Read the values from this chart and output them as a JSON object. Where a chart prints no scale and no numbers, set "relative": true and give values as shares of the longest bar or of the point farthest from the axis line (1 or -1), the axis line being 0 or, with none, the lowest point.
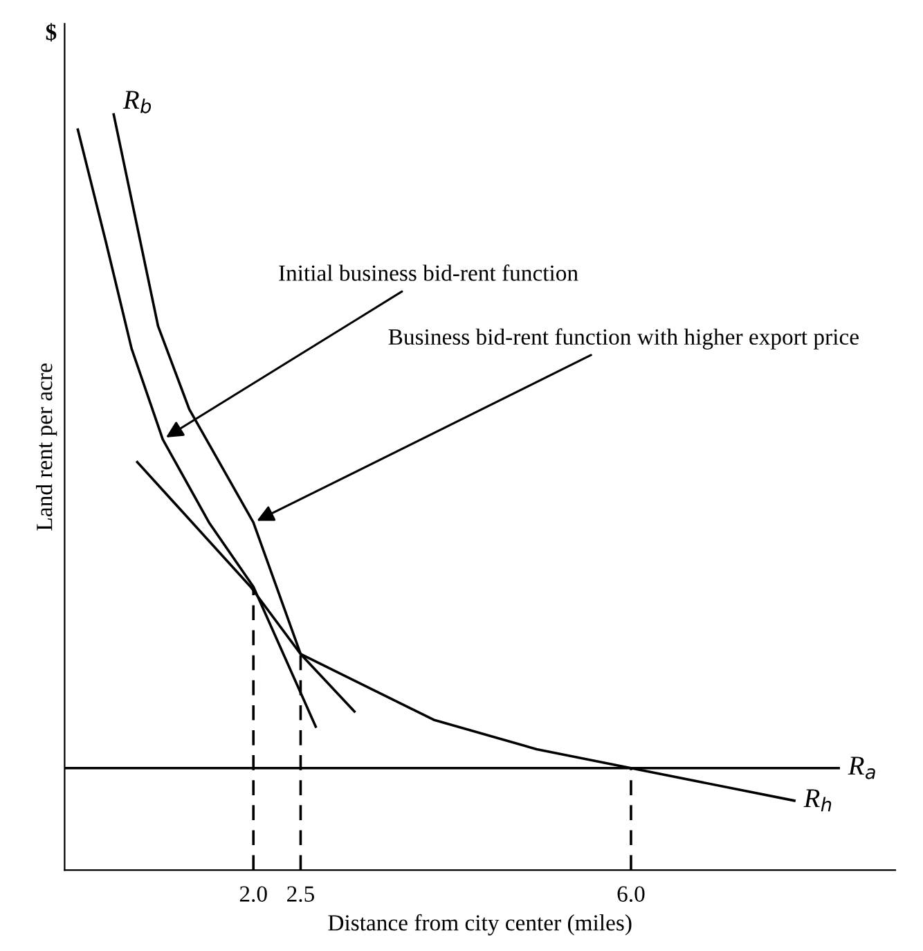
{
  "chart_data": {
    "type": "line",
    "relative": true,
    "xlabel": "Distance from city center (miles)",
    "ylabel": "Land rent per acre",
    "xlim": [
      0,
      8.8
    ],
    "xticks": [
      {
        "value": 2,
        "label": "2.0"
      },
      {
        "value": 2.5,
        "label": "2.5"
      },
      {
        "value": 6,
        "label": "6.0"
      }
    ],
    "grid": false,
    "legend": false,
    "marker": "none",
    "series": [
      {
        "name": "R$_{b}$",
        "color": "#000000",
        "x": [
          0.52,
          0.99,
          1.32,
          2.0,
          2.5,
          3.07
        ],
        "values": [
          1.0,
          0.72,
          0.61,
          0.46,
          0.286,
          0.21
        ]
      },
      {
        "color": "#000000",
        "x": [
          0.14,
          0.44,
          0.71,
          1.04,
          1.53,
          2.0,
          2.66
        ],
        "values": [
          0.98,
          0.83,
          0.69,
          0.57,
          0.46,
          0.375,
          0.19
        ]
      },
      {
        "name": "R$_{h}$",
        "color": "#000000",
        "x": [
          0.77,
          1.97,
          2.5,
          3.91,
          5.0,
          6.0,
          7.73
        ],
        "values": [
          0.54,
          0.375,
          0.286,
          0.199,
          0.16,
          0.135,
          0.092
        ]
      },
      {
        "name": "R$_{a}$",
        "color": "#000000",
        "x": [
          0,
          8.2
        ],
        "values": [
          0.135,
          0.135
        ]
      },
      {
        "color": "#000000",
        "line_style": "dashed",
        "x": [
          2.0,
          2.0
        ],
        "values": [
          0,
          0.375
        ]
      },
      {
        "color": "#000000",
        "line_style": "dashed",
        "x": [
          2.5,
          2.5
        ],
        "values": [
          0,
          0.286
        ]
      },
      {
        "color": "#000000",
        "line_style": "dashed",
        "x": [
          6.0,
          6.0
        ],
        "values": [
          0,
          0.135
        ]
      }
    ],
    "annotations": [
      "$",
      {
        "text": "Initial business bid-rent function",
        "x": 1.04,
        "y": 0.57
      },
      {
        "text": "Business bid-rent function with higher export price",
        "x": 2.0,
        "y": 0.46
      }
    ]
  }
}
